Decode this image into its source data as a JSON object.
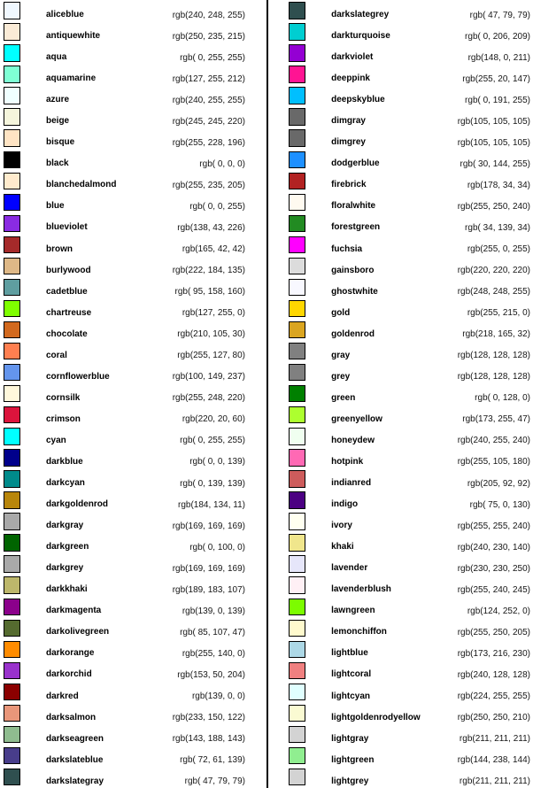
{
  "chart_data": {
    "type": "table",
    "description": "CSS named colors reference table: color swatch, color name, rgb value",
    "legend_position": "none",
    "grid": false,
    "columns": [
      {
        "rows": [
          {
            "name": "aliceblue",
            "value": "rgb(240, 248, 255)"
          },
          {
            "name": "antiquewhite",
            "value": "rgb(250, 235, 215)"
          },
          {
            "name": "aqua",
            "value": "rgb( 0, 255, 255)"
          },
          {
            "name": "aquamarine",
            "value": "rgb(127, 255, 212)"
          },
          {
            "name": "azure",
            "value": "rgb(240, 255, 255)"
          },
          {
            "name": "beige",
            "value": "rgb(245, 245, 220)"
          },
          {
            "name": "bisque",
            "value": "rgb(255, 228, 196)"
          },
          {
            "name": "black",
            "value": "rgb( 0, 0, 0)"
          },
          {
            "name": "blanchedalmond",
            "value": "rgb(255, 235, 205)"
          },
          {
            "name": "blue",
            "value": "rgb( 0, 0, 255)"
          },
          {
            "name": "blueviolet",
            "value": "rgb(138, 43, 226)"
          },
          {
            "name": "brown",
            "value": "rgb(165, 42, 42)"
          },
          {
            "name": "burlywood",
            "value": "rgb(222, 184, 135)"
          },
          {
            "name": "cadetblue",
            "value": "rgb( 95, 158, 160)"
          },
          {
            "name": "chartreuse",
            "value": "rgb(127, 255, 0)"
          },
          {
            "name": "chocolate",
            "value": "rgb(210, 105, 30)"
          },
          {
            "name": "coral",
            "value": "rgb(255, 127, 80)"
          },
          {
            "name": "cornflowerblue",
            "value": "rgb(100, 149, 237)"
          },
          {
            "name": "cornsilk",
            "value": "rgb(255, 248, 220)"
          },
          {
            "name": "crimson",
            "value": "rgb(220, 20, 60)"
          },
          {
            "name": "cyan",
            "value": "rgb( 0, 255, 255)"
          },
          {
            "name": "darkblue",
            "value": "rgb( 0, 0, 139)"
          },
          {
            "name": "darkcyan",
            "value": "rgb( 0, 139, 139)"
          },
          {
            "name": "darkgoldenrod",
            "value": "rgb(184, 134, 11)"
          },
          {
            "name": "darkgray",
            "value": "rgb(169, 169, 169)"
          },
          {
            "name": "darkgreen",
            "value": "rgb( 0, 100, 0)"
          },
          {
            "name": "darkgrey",
            "value": "rgb(169, 169, 169)"
          },
          {
            "name": "darkkhaki",
            "value": "rgb(189, 183, 107)"
          },
          {
            "name": "darkmagenta",
            "value": "rgb(139, 0, 139)"
          },
          {
            "name": "darkolivegreen",
            "value": "rgb( 85, 107, 47)"
          },
          {
            "name": "darkorange",
            "value": "rgb(255, 140, 0)"
          },
          {
            "name": "darkorchid",
            "value": "rgb(153, 50, 204)"
          },
          {
            "name": "darkred",
            "value": "rgb(139, 0, 0)"
          },
          {
            "name": "darksalmon",
            "value": "rgb(233, 150, 122)"
          },
          {
            "name": "darkseagreen",
            "value": "rgb(143, 188, 143)"
          },
          {
            "name": "darkslateblue",
            "value": "rgb( 72, 61, 139)"
          },
          {
            "name": "darkslategray",
            "value": "rgb( 47, 79, 79)"
          }
        ]
      },
      {
        "rows": [
          {
            "name": "darkslategrey",
            "value": "rgb( 47, 79, 79)"
          },
          {
            "name": "darkturquoise",
            "value": "rgb( 0, 206, 209)"
          },
          {
            "name": "darkviolet",
            "value": "rgb(148, 0, 211)"
          },
          {
            "name": "deeppink",
            "value": "rgb(255, 20, 147)"
          },
          {
            "name": "deepskyblue",
            "value": "rgb( 0, 191, 255)"
          },
          {
            "name": "dimgray",
            "value": "rgb(105, 105, 105)"
          },
          {
            "name": "dimgrey",
            "value": "rgb(105, 105, 105)"
          },
          {
            "name": "dodgerblue",
            "value": "rgb( 30, 144, 255)"
          },
          {
            "name": "firebrick",
            "value": "rgb(178, 34, 34)"
          },
          {
            "name": "floralwhite",
            "value": "rgb(255, 250, 240)"
          },
          {
            "name": "forestgreen",
            "value": "rgb( 34, 139, 34)"
          },
          {
            "name": "fuchsia",
            "value": "rgb(255, 0, 255)"
          },
          {
            "name": "gainsboro",
            "value": "rgb(220, 220, 220)"
          },
          {
            "name": "ghostwhite",
            "value": "rgb(248, 248, 255)"
          },
          {
            "name": "gold",
            "value": "rgb(255, 215, 0)"
          },
          {
            "name": "goldenrod",
            "value": "rgb(218, 165, 32)"
          },
          {
            "name": "gray",
            "value": "rgb(128, 128, 128)"
          },
          {
            "name": "grey",
            "value": "rgb(128, 128, 128)"
          },
          {
            "name": "green",
            "value": "rgb( 0, 128, 0)"
          },
          {
            "name": "greenyellow",
            "value": "rgb(173, 255, 47)"
          },
          {
            "name": "honeydew",
            "value": "rgb(240, 255, 240)"
          },
          {
            "name": "hotpink",
            "value": "rgb(255, 105, 180)"
          },
          {
            "name": "indianred",
            "value": "rgb(205, 92, 92)"
          },
          {
            "name": "indigo",
            "value": "rgb( 75, 0, 130)"
          },
          {
            "name": "ivory",
            "value": "rgb(255, 255, 240)"
          },
          {
            "name": "khaki",
            "value": "rgb(240, 230, 140)"
          },
          {
            "name": "lavender",
            "value": "rgb(230, 230, 250)"
          },
          {
            "name": "lavenderblush",
            "value": "rgb(255, 240, 245)"
          },
          {
            "name": "lawngreen",
            "value": "rgb(124, 252, 0)"
          },
          {
            "name": "lemonchiffon",
            "value": "rgb(255, 250, 205)"
          },
          {
            "name": "lightblue",
            "value": "rgb(173, 216, 230)"
          },
          {
            "name": "lightcoral",
            "value": "rgb(240, 128, 128)"
          },
          {
            "name": "lightcyan",
            "value": "rgb(224, 255, 255)"
          },
          {
            "name": "lightgoldenrodyellow",
            "value": "rgb(250, 250, 210)"
          },
          {
            "name": "lightgray",
            "value": "rgb(211, 211, 211)"
          },
          {
            "name": "lightgreen",
            "value": "rgb(144, 238, 144)"
          },
          {
            "name": "lightgrey",
            "value": "rgb(211, 211, 211)"
          }
        ]
      }
    ]
  }
}
